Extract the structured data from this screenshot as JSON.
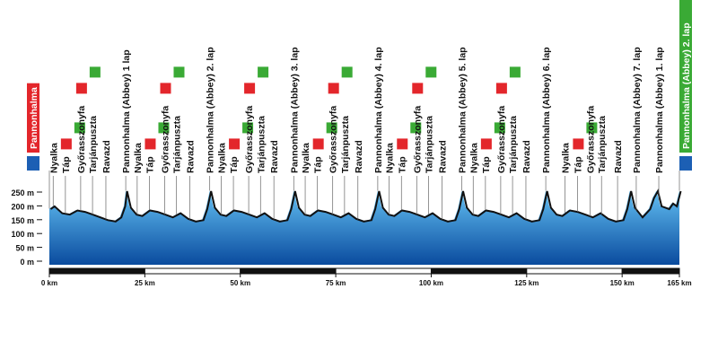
{
  "chart_data": {
    "type": "area",
    "x": [
      0,
      1,
      3,
      5,
      7,
      9,
      11,
      13,
      15,
      17,
      18.5,
      19.5,
      20,
      21,
      22.5,
      24,
      26,
      28,
      30,
      32,
      34,
      36,
      38,
      40,
      41,
      42,
      43,
      44.5,
      46,
      48,
      50,
      52,
      54,
      56,
      58,
      60,
      62,
      63,
      64,
      65,
      66.5,
      68,
      70,
      72,
      74,
      76,
      78,
      80,
      82,
      84,
      85,
      86,
      87,
      88.5,
      90,
      92,
      94,
      96,
      98,
      100,
      102,
      104,
      106,
      107,
      108,
      109,
      110.5,
      112,
      114,
      116,
      118,
      120,
      122,
      124,
      126,
      128,
      129,
      130,
      131,
      132.5,
      134,
      136,
      138,
      140,
      142,
      144,
      146,
      148,
      150,
      151,
      152,
      153,
      155,
      157,
      158,
      159,
      160,
      162,
      163,
      164,
      165
    ],
    "values": [
      190,
      200,
      175,
      170,
      185,
      180,
      170,
      160,
      150,
      145,
      160,
      200,
      255,
      195,
      170,
      165,
      185,
      180,
      170,
      160,
      175,
      155,
      145,
      150,
      190,
      255,
      195,
      170,
      165,
      185,
      180,
      170,
      160,
      175,
      155,
      145,
      150,
      190,
      255,
      195,
      170,
      165,
      185,
      180,
      170,
      160,
      175,
      155,
      145,
      150,
      190,
      255,
      195,
      170,
      165,
      185,
      180,
      170,
      160,
      175,
      155,
      145,
      150,
      190,
      255,
      195,
      170,
      165,
      185,
      180,
      170,
      160,
      175,
      155,
      145,
      150,
      190,
      255,
      195,
      170,
      165,
      185,
      180,
      170,
      160,
      175,
      155,
      145,
      150,
      190,
      255,
      195,
      160,
      190,
      230,
      255,
      200,
      190,
      210,
      200,
      255
    ],
    "xlim": [
      0,
      165
    ],
    "ylim": [
      0,
      250
    ],
    "xticks": [
      {
        "value": 0,
        "label": "0 km"
      },
      {
        "value": 25,
        "label": "25 km"
      },
      {
        "value": 50,
        "label": "50 km"
      },
      {
        "value": 75,
        "label": "75 km"
      },
      {
        "value": 100,
        "label": "100 km"
      },
      {
        "value": 125,
        "label": "125 km"
      },
      {
        "value": 150,
        "label": "150 km"
      },
      {
        "value": 165,
        "label": "165 km"
      }
    ],
    "yticks": [
      {
        "value": 0,
        "label": "0 m"
      },
      {
        "value": 50,
        "label": "50 m"
      },
      {
        "value": 100,
        "label": "100 m"
      },
      {
        "value": 150,
        "label": "150 m"
      },
      {
        "value": 200,
        "label": "200 m"
      },
      {
        "value": 250,
        "label": "250 m"
      }
    ],
    "start": {
      "label": "Pannonhalma",
      "km": 0,
      "color": "#e3262b"
    },
    "finish": {
      "label": "Pannonhalma (Abbey) 2. lap",
      "km": 165,
      "color": "#3aaa35"
    },
    "markers": [
      {
        "label": "Nyalka",
        "km": 1
      },
      {
        "label": "Táp",
        "km": 4.2
      },
      {
        "label": "Győrasszonyfa",
        "km": 8.2
      },
      {
        "label": "Tarjánpuszta",
        "km": 11.3
      },
      {
        "label": "Ravazd",
        "km": 14.8
      },
      {
        "label": "Pannonhalma (Abbey) 1 lap",
        "km": 20
      },
      {
        "label": "Nyalka",
        "km": 23
      },
      {
        "label": "Táp",
        "km": 26.2
      },
      {
        "label": "Győrasszonyfa",
        "km": 30.2
      },
      {
        "label": "Tarjánpuszta",
        "km": 33.3
      },
      {
        "label": "Ravazd",
        "km": 36.8
      },
      {
        "label": "Pannonhalma (Abbey) 2. lap",
        "km": 42
      },
      {
        "label": "Nyalka",
        "km": 45
      },
      {
        "label": "Táp",
        "km": 48.2
      },
      {
        "label": "Győrasszonyfa",
        "km": 52.2
      },
      {
        "label": "Tarjánpuszta",
        "km": 55.3
      },
      {
        "label": "Ravazd",
        "km": 58.8
      },
      {
        "label": "Pannonhalma (Abbey) 3. lap",
        "km": 64
      },
      {
        "label": "Nyalka",
        "km": 67
      },
      {
        "label": "Táp",
        "km": 70.2
      },
      {
        "label": "Győrasszonyfa",
        "km": 74.2
      },
      {
        "label": "Tarjánpuszta",
        "km": 77.3
      },
      {
        "label": "Ravazd",
        "km": 80.8
      },
      {
        "label": "Pannonhalma (Abbey) 4. lap",
        "km": 86
      },
      {
        "label": "Nyalka",
        "km": 89
      },
      {
        "label": "Táp",
        "km": 92.2
      },
      {
        "label": "Győrasszonyfa",
        "km": 96.2
      },
      {
        "label": "Tarjánpuszta",
        "km": 99.3
      },
      {
        "label": "Ravazd",
        "km": 102.8
      },
      {
        "label": "Pannonhalma (Abbey) 5. lap",
        "km": 108
      },
      {
        "label": "Nyalka",
        "km": 111
      },
      {
        "label": "Táp",
        "km": 114.2
      },
      {
        "label": "Győrasszonyfa",
        "km": 118.2
      },
      {
        "label": "Tarjánpuszta",
        "km": 121.3
      },
      {
        "label": "Ravazd",
        "km": 124.8
      },
      {
        "label": "Pannonhalma (Abbey) 6. lap",
        "km": 130
      },
      {
        "label": "Nyalka",
        "km": 135
      },
      {
        "label": "Táp",
        "km": 138.3
      },
      {
        "label": "Győrasszonyfa",
        "km": 141.6
      },
      {
        "label": "Tarjánpuszta",
        "km": 144.6
      },
      {
        "label": "Ravazd",
        "km": 148.8
      },
      {
        "label": "Pannonhalma (Abbey) 7. lap",
        "km": 153.7
      },
      {
        "label": "Pannonhalma (Abbey) 1. lap",
        "km": 159.6
      }
    ]
  }
}
